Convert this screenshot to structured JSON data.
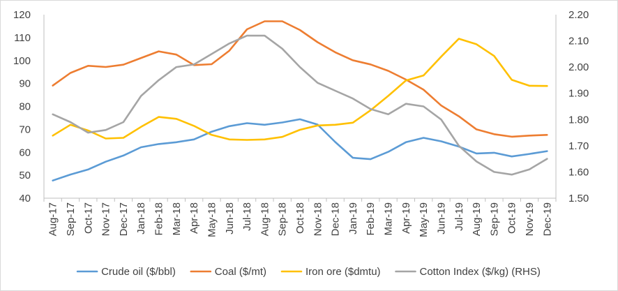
{
  "chart_data": {
    "type": "line",
    "title": "",
    "categories": [
      "Aug-17",
      "Sep-17",
      "Oct-17",
      "Nov-17",
      "Dec-17",
      "Jan-18",
      "Feb-18",
      "Mar-18",
      "Apr-18",
      "May-18",
      "Jun-18",
      "Jul-18",
      "Aug-18",
      "Sep-18",
      "Oct-18",
      "Nov-18",
      "Dec-18",
      "Jan-19",
      "Feb-19",
      "Mar-19",
      "Apr-19",
      "May-19",
      "Jun-19",
      "Jul-19",
      "Aug-19",
      "Sep-19",
      "Oct-19",
      "Nov-19",
      "Dec-19"
    ],
    "y_left": {
      "ylim": [
        40,
        120
      ],
      "ticks": [
        40,
        50,
        60,
        70,
        80,
        90,
        100,
        110,
        120
      ],
      "tick_labels": [
        "40",
        "50",
        "60",
        "70",
        "80",
        "90",
        "100",
        "110",
        "120"
      ]
    },
    "y_right": {
      "ylim": [
        1.5,
        2.2
      ],
      "ticks": [
        1.5,
        1.6,
        1.7,
        1.8,
        1.9,
        2.0,
        2.1,
        2.2
      ],
      "tick_labels": [
        "1.50",
        "1.60",
        "1.70",
        "1.80",
        "1.90",
        "2.00",
        "2.10",
        "2.20"
      ]
    },
    "grid": false,
    "legend_position": "bottom",
    "series": [
      {
        "name": "Crude oil ($/bbl)",
        "axis": "left",
        "color": "#5b9bd5",
        "values": [
          47.7,
          50.3,
          52.5,
          55.9,
          58.6,
          62.2,
          63.6,
          64.4,
          65.6,
          69.0,
          71.4,
          72.7,
          72.0,
          73.0,
          74.4,
          72.1,
          64.5,
          57.6,
          57.0,
          60.2,
          64.4,
          66.3,
          64.8,
          62.5,
          59.5,
          59.8,
          58.2,
          59.3,
          60.5
        ]
      },
      {
        "name": "Coal ($/mt)",
        "axis": "left",
        "color": "#ed7d31",
        "values": [
          89.1,
          94.6,
          97.7,
          97.2,
          98.2,
          101.1,
          104.0,
          102.6,
          98.0,
          98.4,
          104.3,
          113.6,
          117.1,
          117.1,
          113.3,
          108.0,
          103.6,
          100.1,
          98.3,
          95.5,
          91.7,
          87.3,
          80.4,
          75.7,
          70.0,
          67.9,
          66.8,
          67.3,
          67.6
        ]
      },
      {
        "name": "Iron ore ($dmtu)",
        "axis": "left",
        "color": "#ffc000",
        "values": [
          67.3,
          72.0,
          69.5,
          66.0,
          66.3,
          71.1,
          75.4,
          74.6,
          71.5,
          67.6,
          65.6,
          65.4,
          65.6,
          66.7,
          69.8,
          71.7,
          72.0,
          72.9,
          78.3,
          84.6,
          91.3,
          93.5,
          101.7,
          109.5,
          107.1,
          102.0,
          91.6,
          89.0,
          88.9
        ]
      },
      {
        "name": "Cotton Index ($/kg) (RHS)",
        "axis": "right",
        "color": "#a5a5a5",
        "values": [
          1.82,
          1.79,
          1.75,
          1.76,
          1.79,
          1.89,
          1.95,
          2.0,
          2.01,
          2.05,
          2.09,
          2.12,
          2.12,
          2.07,
          2.0,
          1.94,
          1.91,
          1.88,
          1.84,
          1.82,
          1.86,
          1.85,
          1.8,
          1.7,
          1.64,
          1.6,
          1.59,
          1.61,
          1.65
        ]
      }
    ]
  }
}
